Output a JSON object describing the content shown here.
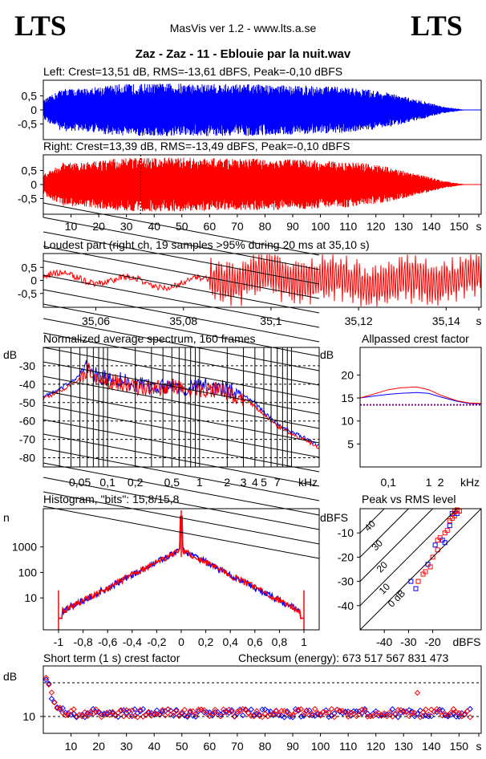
{
  "header": {
    "logo_left": "LTS",
    "logo_right": "LTS",
    "app_title": "MasVis ver 1.2 - www.lts.a.se",
    "file_title": "Zaz - Zaz - 11 - Eblouie par la nuit.wav"
  },
  "colors": {
    "left": "#0000ff",
    "right": "#ff0000",
    "axis": "#000000"
  },
  "chart_data": [
    {
      "id": "left",
      "type": "area",
      "title": "Left: Crest=13,51 dB, RMS=-13,61 dBFS, Peak=-0,10 dBFS",
      "series": [
        {
          "values": [
            0.34,
            0.77,
            0.76,
            0.85,
            0.92,
            0.93,
            0.94,
            0.95,
            0.93,
            0.93,
            0.92,
            0.92,
            0.9,
            0.88,
            0.86,
            0.84,
            0.8,
            0.74,
            0.63,
            0.47,
            0.31,
            0.12,
            0.02,
            0.0
          ]
        }
      ],
      "x_range": [
        0,
        158
      ],
      "yticks": [
        "0,5",
        "0",
        "-0,5"
      ]
    },
    {
      "id": "right",
      "type": "area",
      "title": "Right: Crest=13,39 dB, RMS=-13,49 dBFS, Peak=-0,10 dBFS",
      "series": [
        {
          "values": [
            0.35,
            0.79,
            0.77,
            0.86,
            0.93,
            0.95,
            0.96,
            0.96,
            0.95,
            0.94,
            0.93,
            0.92,
            0.91,
            0.89,
            0.87,
            0.85,
            0.81,
            0.75,
            0.64,
            0.48,
            0.32,
            0.13,
            0.02,
            0.0
          ]
        }
      ],
      "x_range": [
        0,
        158
      ],
      "marker_x": 35.1,
      "yticks": [
        "0,5",
        "0",
        "-0,5"
      ],
      "xticks": [
        "10",
        "20",
        "30",
        "40",
        "50",
        "60",
        "70",
        "80",
        "90",
        "100",
        "110",
        "120",
        "130",
        "140",
        "150",
        "s"
      ]
    },
    {
      "id": "loudest",
      "type": "line",
      "title": "Loudest part (right ch, 19 samples >95% during 20 ms at 35,10 s)",
      "x_range": [
        35.048,
        35.148
      ],
      "xticks": [
        "35,06",
        "35,08",
        "35,1",
        "35,12",
        "35,14",
        "s"
      ],
      "yticks": [
        "0,5",
        "0",
        "-0,5"
      ]
    },
    {
      "id": "spectrum",
      "type": "line",
      "title": "Normalized average spectrum, 160 frames",
      "ylabel": "dB",
      "yticks": [
        "-30",
        "-40",
        "-50",
        "-60",
        "-70",
        "-80"
      ],
      "xticks": [
        "0,05",
        "0,1",
        "0,2",
        "0,5",
        "1",
        "2",
        "3",
        "4",
        "5",
        "7",
        "kHz"
      ],
      "x_khz": [
        0.02,
        0.03,
        0.05,
        0.06,
        0.07,
        0.08,
        0.1,
        0.15,
        0.2,
        0.3,
        0.5,
        0.7,
        1,
        1.5,
        2,
        3,
        4,
        5,
        7,
        10,
        15,
        20
      ],
      "series": [
        {
          "values": [
            -47,
            -43,
            -35,
            -30,
            -34,
            -36,
            -37,
            -38,
            -40,
            -42,
            -40,
            -42,
            -41,
            -41,
            -43,
            -46,
            -50,
            -55,
            -62,
            -66,
            -70,
            -74
          ]
        },
        {
          "values": [
            -48,
            -44,
            -37,
            -32,
            -35,
            -37,
            -38,
            -40,
            -42,
            -43,
            -41,
            -43,
            -43,
            -43,
            -45,
            -48,
            -52,
            -57,
            -63,
            -67,
            -71,
            -75
          ]
        }
      ]
    },
    {
      "id": "crest",
      "type": "line",
      "title": "Allpassed crest factor",
      "ylabel": "dB",
      "yticks": [
        "20",
        "15",
        "10",
        "5"
      ],
      "xticks": [
        "0,1",
        "1",
        "2",
        "kHz"
      ],
      "x_khz": [
        0.02,
        0.05,
        0.1,
        0.2,
        0.5,
        1,
        2,
        5,
        10,
        20
      ],
      "series": [
        {
          "values": [
            15.0,
            15.5,
            15.8,
            16.0,
            16.2,
            16.0,
            15.2,
            14.3,
            13.8,
            13.7
          ]
        },
        {
          "values": [
            15.0,
            16.0,
            16.8,
            17.2,
            17.4,
            16.8,
            15.6,
            14.4,
            13.9,
            13.8
          ]
        }
      ],
      "reference": 13.5
    },
    {
      "id": "histogram",
      "type": "line",
      "title": "Histogram, \"bits\": 15,8/15,8",
      "ylabel": "n",
      "yticks": [
        "1000",
        "100",
        "10"
      ],
      "xticks": [
        "-1",
        "-0,8",
        "-0,6",
        "-0,4",
        "-0,2",
        "0",
        "0,2",
        "0,4",
        "0,6",
        "0,8",
        "1"
      ]
    },
    {
      "id": "peakrms",
      "type": "scatter",
      "title": "Peak vs RMS level",
      "ylabel": "dBFS",
      "xlabel": "dBFS",
      "yticks": [
        "-10",
        "-20",
        "-30",
        "-40"
      ],
      "xticks": [
        "-40",
        "-30",
        "-20"
      ],
      "diag_labels": [
        "40",
        "30",
        "20",
        "10",
        "0 dB"
      ],
      "points": [
        [
          -27,
          -33
        ],
        [
          -26,
          -30
        ],
        [
          -24,
          -27
        ],
        [
          -22,
          -23
        ],
        [
          -21,
          -24
        ],
        [
          -20,
          -20
        ],
        [
          -19,
          -15
        ],
        [
          -18,
          -17
        ],
        [
          -17,
          -12
        ],
        [
          -16,
          -13
        ],
        [
          -15,
          -10
        ],
        [
          -14,
          -9
        ],
        [
          -13,
          -7
        ],
        [
          -13,
          -5
        ],
        [
          -12,
          -4
        ],
        [
          -12,
          -2
        ],
        [
          -11,
          -3
        ],
        [
          -11,
          -1
        ],
        [
          -10,
          -2
        ],
        [
          -10,
          -0.5
        ],
        [
          -9,
          -1
        ],
        [
          -15,
          -14
        ],
        [
          -18,
          -13
        ],
        [
          -23,
          -26
        ],
        [
          -29,
          -30
        ]
      ]
    },
    {
      "id": "shortterm",
      "type": "scatter",
      "title": "Short term (1 s) crest factor",
      "checksum": "Checksum (energy):  673 517 567 831 473",
      "ylabel": "dB",
      "yticks": [
        "10"
      ],
      "xticks": [
        "10",
        "20",
        "30",
        "40",
        "50",
        "60",
        "70",
        "80",
        "90",
        "100",
        "110",
        "120",
        "130",
        "140",
        "150",
        "s"
      ],
      "x_range": [
        0,
        158
      ],
      "values": [
        22,
        19,
        16,
        14,
        13,
        12,
        12,
        11,
        11,
        11,
        11,
        11,
        11,
        11,
        11,
        11,
        11,
        11,
        11,
        11
      ]
    }
  ]
}
